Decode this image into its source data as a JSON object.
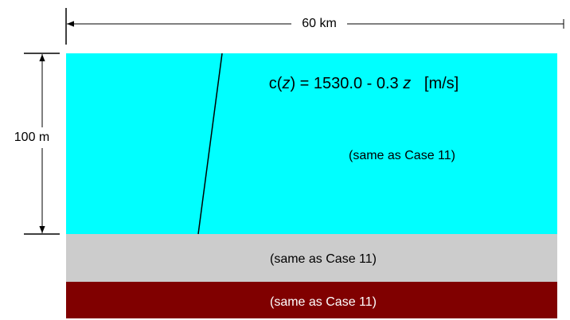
{
  "width_label": "60 km",
  "depth_label": "100 m",
  "formula": {
    "parts": [
      "c(",
      "z",
      ") = 1530.0 - 0.3 ",
      "z",
      "   [m/s]"
    ]
  },
  "layers": [
    {
      "label": "(same as Case 11)"
    },
    {
      "label": "(same as Case 11)"
    },
    {
      "label": "(same as Case 11)"
    }
  ]
}
